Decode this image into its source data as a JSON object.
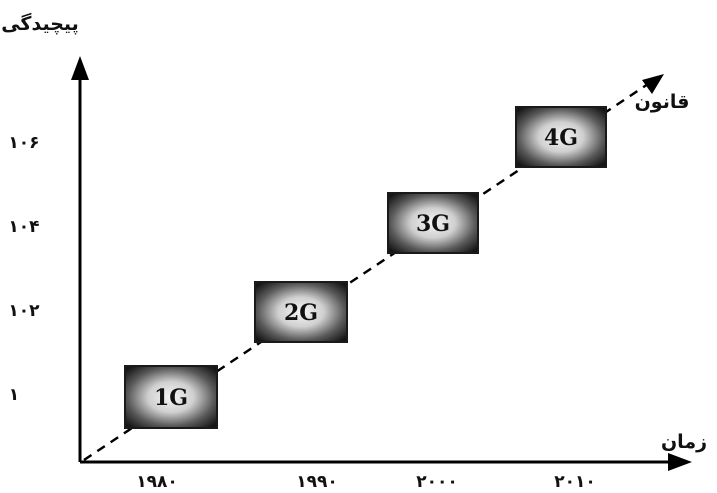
{
  "y_axis": {
    "title": "پیچیدگی",
    "ticks": [
      "۱۰۶",
      "۱۰۴",
      "۱۰۲",
      "۱"
    ]
  },
  "x_axis": {
    "title": "زمان",
    "ticks": [
      "۱۹۸۰",
      "۱۹۹۰",
      "۲۰۰۰",
      "۲۰۱۰"
    ]
  },
  "trend_label": "قانون",
  "generations": [
    {
      "label": "1G"
    },
    {
      "label": "2G"
    },
    {
      "label": "3G"
    },
    {
      "label": "4G"
    }
  ],
  "colors": {
    "axis": "#000000",
    "box_edge": "#1a1a1a",
    "box_center": "#f2f2f2"
  }
}
